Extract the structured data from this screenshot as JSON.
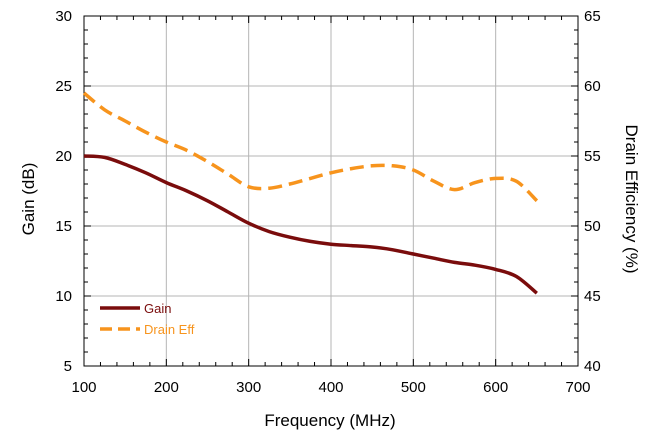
{
  "chart_data": {
    "type": "line",
    "xlabel": "Frequency (MHz)",
    "ylabel": "Gain (dB)",
    "y2label": "Drain Efficiency (%)",
    "xlim": [
      100,
      700
    ],
    "ylim": [
      5,
      30
    ],
    "y2lim": [
      40,
      65
    ],
    "xticks": [
      "100",
      "200",
      "300",
      "400",
      "500",
      "600",
      "700"
    ],
    "yticks": [
      "5",
      "10",
      "15",
      "20",
      "25",
      "30"
    ],
    "y2ticks": [
      "40",
      "45",
      "50",
      "55",
      "60",
      "65"
    ],
    "grid": true,
    "legend_position": "bottom-left",
    "series": [
      {
        "name": "Gain",
        "axis": "left",
        "color": "#7a0c0c",
        "style": "solid",
        "x": [
          100,
          125,
          150,
          175,
          200,
          225,
          250,
          275,
          300,
          325,
          350,
          375,
          400,
          425,
          450,
          475,
          500,
          525,
          550,
          575,
          600,
          625,
          650
        ],
        "values": [
          20.0,
          19.9,
          19.4,
          18.8,
          18.1,
          17.5,
          16.8,
          16.0,
          15.2,
          14.6,
          14.2,
          13.9,
          13.7,
          13.6,
          13.5,
          13.3,
          13.0,
          12.7,
          12.4,
          12.2,
          11.9,
          11.4,
          10.2
        ]
      },
      {
        "name": "Drain Eff",
        "axis": "right",
        "color": "#f7941d",
        "style": "dashed",
        "x": [
          100,
          125,
          150,
          175,
          200,
          225,
          250,
          275,
          300,
          325,
          350,
          375,
          400,
          425,
          450,
          475,
          500,
          525,
          550,
          575,
          600,
          625,
          650
        ],
        "values": [
          59.5,
          58.3,
          57.5,
          56.7,
          56.0,
          55.4,
          54.6,
          53.7,
          52.8,
          52.7,
          53.0,
          53.4,
          53.8,
          54.1,
          54.3,
          54.3,
          54.0,
          53.2,
          52.6,
          53.1,
          53.4,
          53.2,
          51.8
        ]
      }
    ]
  }
}
